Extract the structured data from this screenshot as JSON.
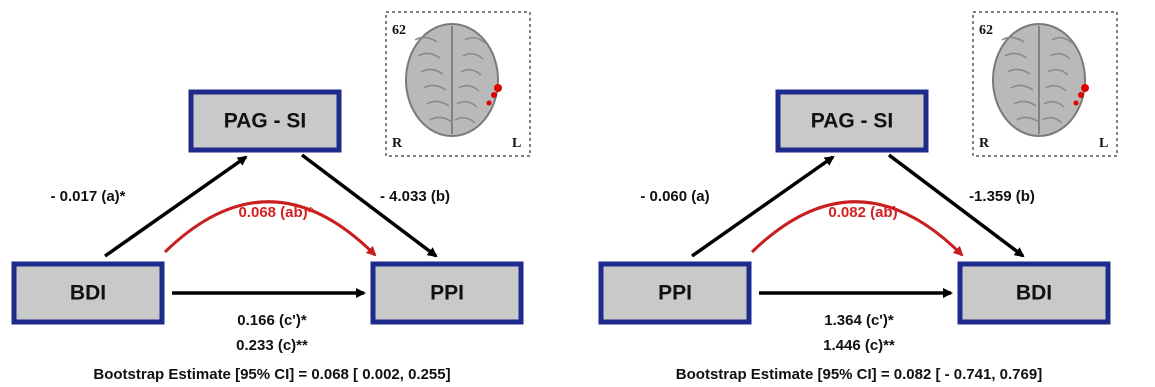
{
  "panels": [
    {
      "inset": {
        "slice": "62",
        "left": "R",
        "right": "L"
      },
      "nodes": {
        "mediator": "PAG - SI",
        "predictor": "BDI",
        "outcome": "PPI"
      },
      "paths": {
        "a": "- 0.017 (a)*",
        "b": "- 4.033 (b)",
        "ab": "0.068 (ab)*",
        "c_prime": "0.166 (c')*",
        "c": "0.233 (c)**"
      },
      "bootstrap": "Bootstrap Estimate [95% CI] =  0.068 [ 0.002, 0.255]"
    },
    {
      "inset": {
        "slice": "62",
        "left": "R",
        "right": "L"
      },
      "nodes": {
        "mediator": "PAG - SI",
        "predictor": "PPI",
        "outcome": "BDI"
      },
      "paths": {
        "a": "- 0.060 (a)",
        "b": "-1.359 (b)",
        "ab": "0.082 (ab)",
        "c_prime": "1.364 (c')*",
        "c": "1.446 (c)**"
      },
      "bootstrap": "Bootstrap Estimate [95% CI] = 0.082 [ - 0.741, 0.769]"
    }
  ]
}
